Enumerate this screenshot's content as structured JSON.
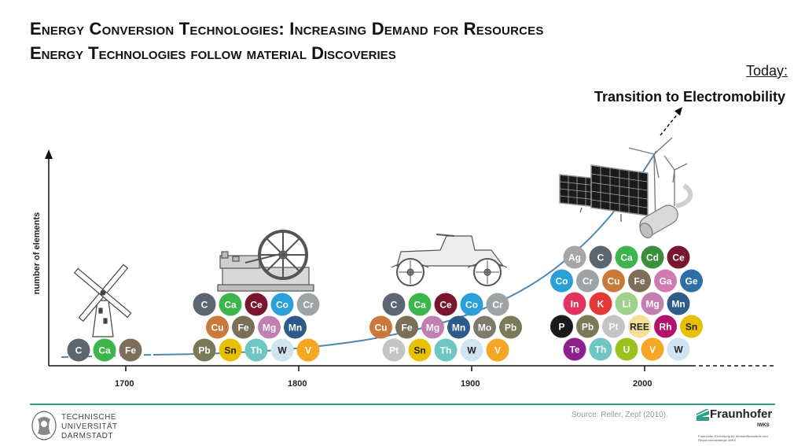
{
  "title": "Energy Conversion Technologies: Increasing Demand for Resources",
  "subtitle_prefix": "Energy Technologies follow ",
  "subtitle_bold": "material Discoveries",
  "today_label": "Today:",
  "transition_label": "Transition to Electromobility",
  "y_axis_label": "number of elements",
  "x_ticks": [
    "1700",
    "1800",
    "1900",
    "2000"
  ],
  "source": "Source: Reller, Zepf (2010).",
  "university": [
    "TECHNISCHE",
    "UNIVERSITÄT",
    "DARMSTADT"
  ],
  "fraunhofer": "Fraunhofer",
  "fraunhofer_unit": "IWKS",
  "fraunhofer_sub": "Fraunhofer-Einrichtung für Wertstoffkreisläufe und Ressourcenstrategie IWKS",
  "icons": [
    "windmill-icon",
    "steam-engine-icon",
    "car-icon",
    "solar-panel-icon",
    "wind-turbine-icon",
    "catalytic-converter-icon"
  ],
  "colors": {
    "C": "#5b6670",
    "Ca": "#3cb54a",
    "Fe": "#7d6e5a",
    "Ce": "#7a1530",
    "Co": "#2a9fd8",
    "Cr": "#9ea3a6",
    "Cu": "#c97a3a",
    "Mg": "#c37fb0",
    "Mn": "#2e5c8a",
    "Pb": "#7a7a5a",
    "Sn": "#e8c000",
    "Th": "#6dc6c3",
    "W": "#cfe3f0",
    "V": "#f5a623",
    "Mo": "#7e7a6b",
    "Pt": "#c4c4c4",
    "Ag": "#a6a6a6",
    "Cd": "#3a8f3a",
    "Ga": "#d37ab3",
    "Ge": "#2f6ea6",
    "In": "#e0345e",
    "K": "#e53935",
    "Li": "#9ed28a",
    "P": "#1a1a1a",
    "REE": "#f5e09a",
    "Rh": "#b3126c",
    "Te": "#8e1f8e",
    "U": "#9ac21e",
    "curve": "#4f87b0",
    "accent": "#2f9e8b"
  },
  "element_groups": [
    {
      "era": "1700",
      "rows": [
        [
          "C",
          "Ca",
          "Fe"
        ]
      ]
    },
    {
      "era": "1800",
      "rows": [
        [
          "C",
          "Ca",
          "Ce",
          "Co",
          "Cr"
        ],
        [
          "Cu",
          "Fe",
          "Mg",
          "Mn"
        ],
        [
          "Pb",
          "Sn",
          "Th",
          "W",
          "V"
        ]
      ]
    },
    {
      "era": "1900",
      "rows": [
        [
          "C",
          "Ca",
          "Ce",
          "Co",
          "Cr"
        ],
        [
          "Cu",
          "Fe",
          "Mg",
          "Mn",
          "Mo",
          "Pb"
        ],
        [
          "Pt",
          "Sn",
          "Th",
          "W",
          "V"
        ]
      ]
    },
    {
      "era": "2000",
      "rows": [
        [
          "Ag",
          "C",
          "Ca",
          "Cd",
          "Ce"
        ],
        [
          "Co",
          "Cr",
          "Cu",
          "Fe",
          "Ga",
          "Ge"
        ],
        [
          "In",
          "K",
          "Li",
          "Mg",
          "Mn"
        ],
        [
          "P",
          "Pb",
          "Pt",
          "REE",
          "Rh",
          "Sn"
        ],
        [
          "Te",
          "Th",
          "U",
          "V",
          "W"
        ]
      ]
    }
  ]
}
